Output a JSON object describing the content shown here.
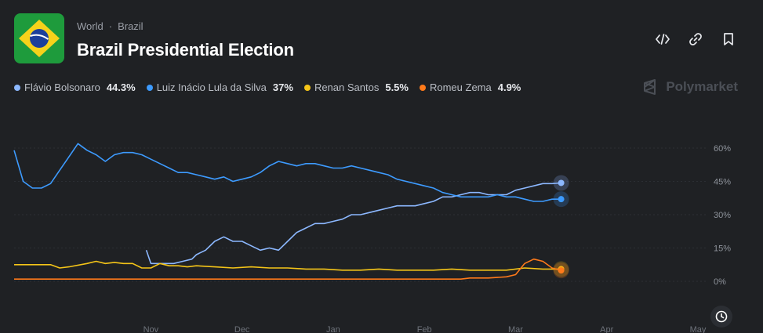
{
  "header": {
    "breadcrumb": [
      "World",
      "Brazil"
    ],
    "title": "Brazil Presidential Election",
    "brand": "Polymarket"
  },
  "actions": [
    "embed-icon",
    "link-icon",
    "bookmark-icon"
  ],
  "legend": [
    {
      "name": "Flávio Bolsonaro",
      "value": "44.3%",
      "color": "#8cb8ff"
    },
    {
      "name": "Luiz Inácio Lula da Silva",
      "value": "37%",
      "color": "#3d9bff"
    },
    {
      "name": "Renan Santos",
      "value": "5.5%",
      "color": "#f5c518"
    },
    {
      "name": "Romeu Zema",
      "value": "4.9%",
      "color": "#ff7a1a"
    }
  ],
  "chart_data": {
    "type": "line",
    "x_ticks": [
      "Nov",
      "Dec",
      "Jan",
      "Feb",
      "Mar",
      "Apr",
      "May"
    ],
    "x_tick_pos": [
      1.5,
      2.5,
      3.5,
      4.5,
      5.5,
      6.5,
      7.5
    ],
    "xlim": [
      0,
      7.5
    ],
    "y_ticks": [
      "60%",
      "45%",
      "30%",
      "15%",
      "0%"
    ],
    "y_tick_values": [
      60,
      45,
      30,
      15,
      0
    ],
    "ylim": [
      0,
      60
    ],
    "grid": true,
    "series": [
      {
        "name": "Flávio Bolsonaro",
        "color": "#8cb8ff",
        "points": [
          [
            1.45,
            14
          ],
          [
            1.5,
            8
          ],
          [
            1.75,
            8
          ],
          [
            1.85,
            9
          ],
          [
            1.95,
            10
          ],
          [
            2.0,
            12
          ],
          [
            2.1,
            14
          ],
          [
            2.2,
            18
          ],
          [
            2.3,
            20
          ],
          [
            2.4,
            18
          ],
          [
            2.5,
            18
          ],
          [
            2.6,
            16
          ],
          [
            2.7,
            14
          ],
          [
            2.8,
            15
          ],
          [
            2.9,
            14
          ],
          [
            3.0,
            18
          ],
          [
            3.1,
            22
          ],
          [
            3.2,
            24
          ],
          [
            3.3,
            26
          ],
          [
            3.4,
            26
          ],
          [
            3.5,
            27
          ],
          [
            3.6,
            28
          ],
          [
            3.7,
            30
          ],
          [
            3.8,
            30
          ],
          [
            3.9,
            31
          ],
          [
            4.0,
            32
          ],
          [
            4.1,
            33
          ],
          [
            4.2,
            34
          ],
          [
            4.3,
            34
          ],
          [
            4.4,
            34
          ],
          [
            4.5,
            35
          ],
          [
            4.6,
            36
          ],
          [
            4.7,
            38
          ],
          [
            4.8,
            38
          ],
          [
            4.9,
            39
          ],
          [
            5.0,
            40
          ],
          [
            5.1,
            40
          ],
          [
            5.2,
            39
          ],
          [
            5.3,
            39
          ],
          [
            5.4,
            39
          ],
          [
            5.5,
            41
          ],
          [
            5.6,
            42
          ],
          [
            5.7,
            43
          ],
          [
            5.8,
            44
          ],
          [
            5.9,
            44
          ],
          [
            6.0,
            44.3
          ]
        ]
      },
      {
        "name": "Luiz Inácio Lula da Silva",
        "color": "#3d9bff",
        "points": [
          [
            0,
            59
          ],
          [
            0.1,
            45
          ],
          [
            0.2,
            42
          ],
          [
            0.3,
            42
          ],
          [
            0.4,
            44
          ],
          [
            0.5,
            50
          ],
          [
            0.6,
            56
          ],
          [
            0.7,
            62
          ],
          [
            0.8,
            59
          ],
          [
            0.9,
            57
          ],
          [
            1.0,
            54
          ],
          [
            1.1,
            57
          ],
          [
            1.2,
            58
          ],
          [
            1.3,
            58
          ],
          [
            1.4,
            57
          ],
          [
            1.5,
            55
          ],
          [
            1.6,
            53
          ],
          [
            1.7,
            51
          ],
          [
            1.8,
            49
          ],
          [
            1.9,
            49
          ],
          [
            2.0,
            48
          ],
          [
            2.1,
            47
          ],
          [
            2.2,
            46
          ],
          [
            2.3,
            47
          ],
          [
            2.4,
            45
          ],
          [
            2.5,
            46
          ],
          [
            2.6,
            47
          ],
          [
            2.7,
            49
          ],
          [
            2.8,
            52
          ],
          [
            2.9,
            54
          ],
          [
            3.0,
            53
          ],
          [
            3.1,
            52
          ],
          [
            3.2,
            53
          ],
          [
            3.3,
            53
          ],
          [
            3.4,
            52
          ],
          [
            3.5,
            51
          ],
          [
            3.6,
            51
          ],
          [
            3.7,
            52
          ],
          [
            3.8,
            51
          ],
          [
            3.9,
            50
          ],
          [
            4.0,
            49
          ],
          [
            4.1,
            48
          ],
          [
            4.2,
            46
          ],
          [
            4.3,
            45
          ],
          [
            4.4,
            44
          ],
          [
            4.5,
            43
          ],
          [
            4.6,
            42
          ],
          [
            4.7,
            40
          ],
          [
            4.8,
            39
          ],
          [
            4.9,
            38
          ],
          [
            5.0,
            38
          ],
          [
            5.1,
            38
          ],
          [
            5.2,
            38
          ],
          [
            5.3,
            39
          ],
          [
            5.4,
            38
          ],
          [
            5.5,
            38
          ],
          [
            5.6,
            37
          ],
          [
            5.7,
            36
          ],
          [
            5.8,
            36
          ],
          [
            5.9,
            37
          ],
          [
            6.0,
            37
          ]
        ]
      },
      {
        "name": "Renan Santos",
        "color": "#f5c518",
        "points": [
          [
            0,
            7.5
          ],
          [
            0.4,
            7.5
          ],
          [
            0.5,
            6
          ],
          [
            0.6,
            6.5
          ],
          [
            0.8,
            8
          ],
          [
            0.9,
            9
          ],
          [
            1.0,
            8
          ],
          [
            1.1,
            8.5
          ],
          [
            1.2,
            8
          ],
          [
            1.3,
            8
          ],
          [
            1.4,
            6
          ],
          [
            1.5,
            6
          ],
          [
            1.6,
            8
          ],
          [
            1.7,
            7
          ],
          [
            1.8,
            7
          ],
          [
            1.9,
            6.5
          ],
          [
            2.0,
            7
          ],
          [
            2.2,
            6.5
          ],
          [
            2.4,
            6
          ],
          [
            2.6,
            6.5
          ],
          [
            2.8,
            6
          ],
          [
            3.0,
            6
          ],
          [
            3.2,
            5.5
          ],
          [
            3.4,
            5.5
          ],
          [
            3.6,
            5
          ],
          [
            3.8,
            5
          ],
          [
            4.0,
            5.5
          ],
          [
            4.2,
            5
          ],
          [
            4.4,
            5
          ],
          [
            4.6,
            5
          ],
          [
            4.8,
            5.5
          ],
          [
            5.0,
            5
          ],
          [
            5.2,
            5
          ],
          [
            5.4,
            5
          ],
          [
            5.6,
            6
          ],
          [
            5.8,
            5.5
          ],
          [
            6.0,
            5.5
          ]
        ]
      },
      {
        "name": "Romeu Zema",
        "color": "#ff7a1a",
        "points": [
          [
            0,
            1
          ],
          [
            4.9,
            1
          ],
          [
            5.0,
            1.5
          ],
          [
            5.2,
            1.5
          ],
          [
            5.4,
            2
          ],
          [
            5.5,
            3
          ],
          [
            5.6,
            8
          ],
          [
            5.7,
            10
          ],
          [
            5.8,
            9
          ],
          [
            5.9,
            6
          ],
          [
            6.0,
            4.9
          ]
        ]
      }
    ]
  }
}
